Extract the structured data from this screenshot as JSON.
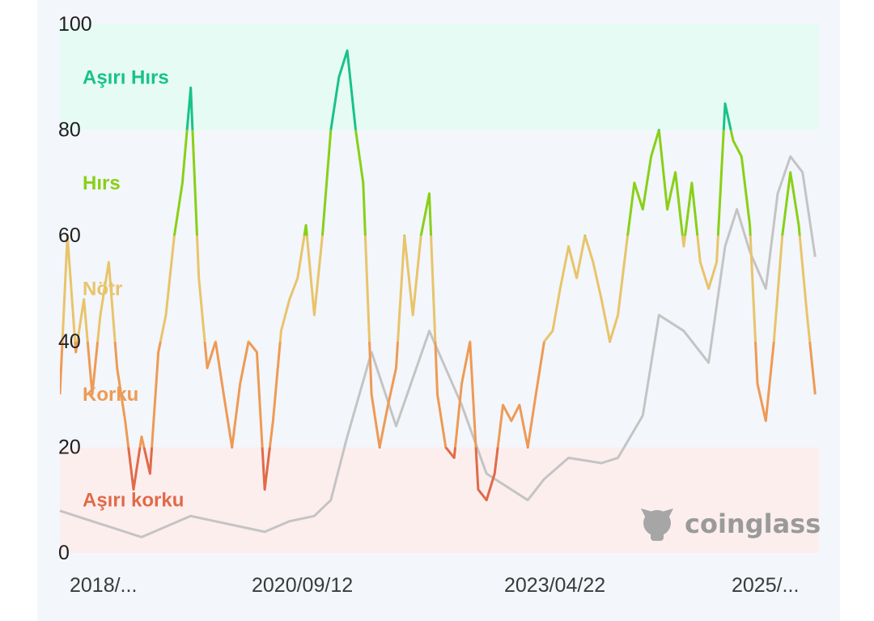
{
  "chart_data": {
    "type": "line",
    "ylim": [
      0,
      100
    ],
    "yticks": [
      "0",
      "20",
      "40",
      "60",
      "80",
      "100"
    ],
    "xticks": [
      "2018/...",
      "2020/09/12",
      "2023/04/22",
      "2025/..."
    ],
    "xlim": [
      "2018-02-01",
      "2025-10-15"
    ],
    "zones": [
      {
        "label": "Aşırı korku",
        "from": 0,
        "to": 20,
        "color": "#e06a48",
        "bg": "#fdeeee"
      },
      {
        "label": "Korku",
        "from": 20,
        "to": 40,
        "color": "#ee9a54",
        "bg": "#f3f6fb"
      },
      {
        "label": "Nötr",
        "from": 40,
        "to": 60,
        "color": "#e8c46a",
        "bg": "#f3f6fb"
      },
      {
        "label": "Hırs",
        "from": 60,
        "to": 80,
        "color": "#88d016",
        "bg": "#f3f6fb"
      },
      {
        "label": "Aşırı Hırs",
        "from": 80,
        "to": 100,
        "color": "#18c28a",
        "bg": "#e6fbf3"
      }
    ],
    "series": [
      {
        "kind": "index",
        "x": [
          "2018-02-01",
          "2018-03-01",
          "2018-04-01",
          "2018-05-01",
          "2018-06-01",
          "2018-07-01",
          "2018-08-01",
          "2018-09-01",
          "2018-10-01",
          "2018-11-01",
          "2018-12-01",
          "2019-01-01",
          "2019-02-01",
          "2019-03-01",
          "2019-04-01",
          "2019-05-01",
          "2019-06-01",
          "2019-07-01",
          "2019-08-01",
          "2019-09-01",
          "2019-10-01",
          "2019-11-01",
          "2019-12-01",
          "2020-01-01",
          "2020-02-01",
          "2020-03-01",
          "2020-04-01",
          "2020-05-01",
          "2020-06-01",
          "2020-07-01",
          "2020-08-01",
          "2020-09-01",
          "2020-10-01",
          "2020-11-01",
          "2020-12-01",
          "2021-01-01",
          "2021-02-01",
          "2021-03-01",
          "2021-04-01",
          "2021-05-01",
          "2021-06-01",
          "2021-07-01",
          "2021-08-01",
          "2021-09-01",
          "2021-10-01",
          "2021-11-01",
          "2021-12-01",
          "2022-01-01",
          "2022-02-01",
          "2022-03-01",
          "2022-04-01",
          "2022-05-01",
          "2022-06-01",
          "2022-07-01",
          "2022-08-01",
          "2022-09-01",
          "2022-10-01",
          "2022-11-01",
          "2022-12-01",
          "2023-01-01",
          "2023-02-01",
          "2023-03-01",
          "2023-04-01",
          "2023-05-01",
          "2023-06-01",
          "2023-07-01",
          "2023-08-01",
          "2023-09-01",
          "2023-10-01",
          "2023-11-01",
          "2023-12-01",
          "2024-01-01",
          "2024-02-01",
          "2024-03-01",
          "2024-04-01",
          "2024-05-01",
          "2024-06-01",
          "2024-07-01",
          "2024-08-01",
          "2024-09-01",
          "2024-10-01",
          "2024-11-01",
          "2024-12-01",
          "2025-01-01",
          "2025-02-01",
          "2025-03-01",
          "2025-04-01",
          "2025-05-01",
          "2025-06-01",
          "2025-07-01",
          "2025-08-01",
          "2025-09-01",
          "2025-10-01"
        ],
        "y": [
          30,
          60,
          38,
          48,
          30,
          45,
          55,
          35,
          25,
          12,
          22,
          15,
          38,
          45,
          60,
          70,
          88,
          52,
          35,
          40,
          30,
          20,
          32,
          40,
          38,
          12,
          25,
          42,
          48,
          52,
          62,
          45,
          60,
          80,
          90,
          95,
          80,
          70,
          30,
          20,
          28,
          35,
          60,
          45,
          60,
          68,
          30,
          20,
          18,
          32,
          40,
          12,
          10,
          15,
          28,
          25,
          28,
          20,
          30,
          40,
          42,
          50,
          58,
          52,
          60,
          55,
          48,
          40,
          45,
          58,
          70,
          65,
          75,
          80,
          65,
          72,
          58,
          70,
          55,
          50,
          55,
          85,
          78,
          75,
          62,
          32,
          25,
          40,
          60,
          72,
          62,
          45,
          30
        ]
      },
      {
        "kind": "price",
        "x": [
          "2018-02-01",
          "2018-06-01",
          "2018-12-01",
          "2019-06-01",
          "2019-12-01",
          "2020-03-01",
          "2020-06-01",
          "2020-09-01",
          "2020-11-01",
          "2021-01-01",
          "2021-04-01",
          "2021-07-01",
          "2021-11-01",
          "2022-03-01",
          "2022-06-01",
          "2022-11-01",
          "2023-01-01",
          "2023-04-01",
          "2023-08-01",
          "2023-10-01",
          "2024-01-01",
          "2024-03-01",
          "2024-06-01",
          "2024-09-01",
          "2024-11-01",
          "2024-12-15",
          "2025-02-01",
          "2025-04-01",
          "2025-05-15",
          "2025-07-01",
          "2025-08-15",
          "2025-10-01"
        ],
        "y": [
          8,
          6,
          3,
          7,
          5,
          4,
          6,
          7,
          10,
          22,
          38,
          24,
          42,
          28,
          15,
          10,
          14,
          18,
          17,
          18,
          26,
          45,
          42,
          36,
          58,
          65,
          57,
          50,
          68,
          75,
          72,
          56
        ]
      }
    ]
  },
  "watermark": {
    "text": "coinglass",
    "icon": "bull-logo-icon"
  }
}
